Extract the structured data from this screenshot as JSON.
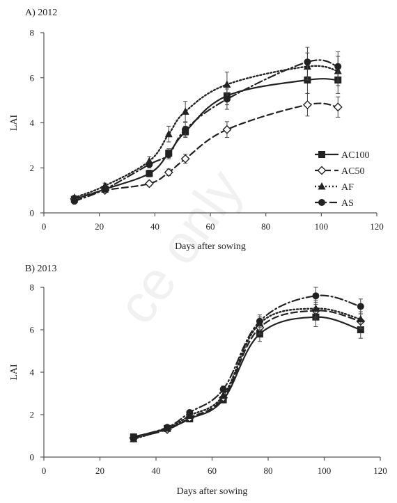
{
  "chart_data": [
    {
      "type": "line",
      "title": "A) 2012",
      "xlabel": "Days after sowing",
      "ylabel": "LAI",
      "xlim": [
        0,
        120
      ],
      "ylim": [
        0,
        8
      ],
      "xticks": [
        0,
        20,
        40,
        60,
        80,
        100,
        120
      ],
      "yticks": [
        0,
        2,
        4,
        6,
        8
      ],
      "grid": false,
      "legend_position": "right-center",
      "series": [
        {
          "name": "AC100",
          "marker": "square",
          "dash": "solid",
          "x": [
            11,
            22,
            38,
            45,
            51,
            66,
            95,
            106
          ],
          "y": [
            0.6,
            1.05,
            1.75,
            2.65,
            3.6,
            5.2,
            5.9,
            5.9
          ],
          "err": [
            0.15,
            0.1,
            0.15,
            0.2,
            0.25,
            0.4,
            0.6,
            0.6
          ]
        },
        {
          "name": "AC50",
          "marker": "diamond-open",
          "dash": "longdash",
          "x": [
            11,
            22,
            38,
            45,
            51,
            66,
            95,
            106
          ],
          "y": [
            0.62,
            1.0,
            1.3,
            1.8,
            2.4,
            3.7,
            4.8,
            4.7
          ],
          "err": [
            0.1,
            0.1,
            0.12,
            0.15,
            0.2,
            0.35,
            0.5,
            0.45
          ]
        },
        {
          "name": "AF",
          "marker": "triangle",
          "dash": "dotted",
          "x": [
            11,
            22,
            38,
            45,
            51,
            66,
            95,
            106
          ],
          "y": [
            0.68,
            1.2,
            2.3,
            3.5,
            4.5,
            5.7,
            6.5,
            6.3
          ],
          "err": [
            0.1,
            0.12,
            0.2,
            0.35,
            0.45,
            0.55,
            0.6,
            0.65
          ]
        },
        {
          "name": "AS",
          "marker": "circle",
          "dash": "dashdot",
          "x": [
            11,
            22,
            38,
            45,
            51,
            66,
            95,
            106
          ],
          "y": [
            0.52,
            1.05,
            2.15,
            2.6,
            3.7,
            5.05,
            6.7,
            6.5
          ],
          "err": [
            0.1,
            0.1,
            0.15,
            0.2,
            0.3,
            0.45,
            0.65,
            0.65
          ]
        }
      ]
    },
    {
      "type": "line",
      "title": "B) 2013",
      "xlabel": "Days after sowing",
      "ylabel": "LAI",
      "xlim": [
        0,
        120
      ],
      "ylim": [
        0,
        8
      ],
      "xticks": [
        0,
        20,
        40,
        60,
        80,
        100,
        120
      ],
      "yticks": [
        0,
        2,
        4,
        6,
        8
      ],
      "grid": false,
      "series": [
        {
          "name": "AC100",
          "marker": "square",
          "dash": "solid",
          "x": [
            32,
            44,
            52,
            64,
            77,
            97,
            113
          ],
          "y": [
            0.95,
            1.35,
            1.8,
            2.7,
            5.8,
            6.6,
            6.0
          ],
          "err": [
            0.12,
            0.1,
            0.1,
            0.15,
            0.35,
            0.45,
            0.4
          ]
        },
        {
          "name": "AC50",
          "marker": "diamond-open",
          "dash": "longdash",
          "x": [
            32,
            44,
            52,
            64,
            77,
            97,
            113
          ],
          "y": [
            0.9,
            1.3,
            1.85,
            2.8,
            6.1,
            6.9,
            6.4
          ],
          "err": [
            0.12,
            0.1,
            0.1,
            0.15,
            0.3,
            0.4,
            0.35
          ]
        },
        {
          "name": "AF",
          "marker": "triangle",
          "dash": "dotted",
          "x": [
            32,
            44,
            52,
            64,
            77,
            97,
            113
          ],
          "y": [
            0.85,
            1.35,
            1.95,
            2.9,
            6.3,
            7.0,
            6.5
          ],
          "err": [
            0.12,
            0.1,
            0.1,
            0.15,
            0.3,
            0.4,
            0.35
          ]
        },
        {
          "name": "AS",
          "marker": "circle",
          "dash": "dashdot",
          "x": [
            32,
            44,
            52,
            64,
            77,
            97,
            113
          ],
          "y": [
            0.95,
            1.4,
            2.1,
            3.2,
            6.4,
            7.6,
            7.1
          ],
          "err": [
            0.12,
            0.1,
            0.1,
            0.15,
            0.3,
            0.4,
            0.35
          ]
        }
      ]
    }
  ],
  "colors": {
    "ink": "#222222",
    "axis": "#555555"
  },
  "watermark": "ce only"
}
